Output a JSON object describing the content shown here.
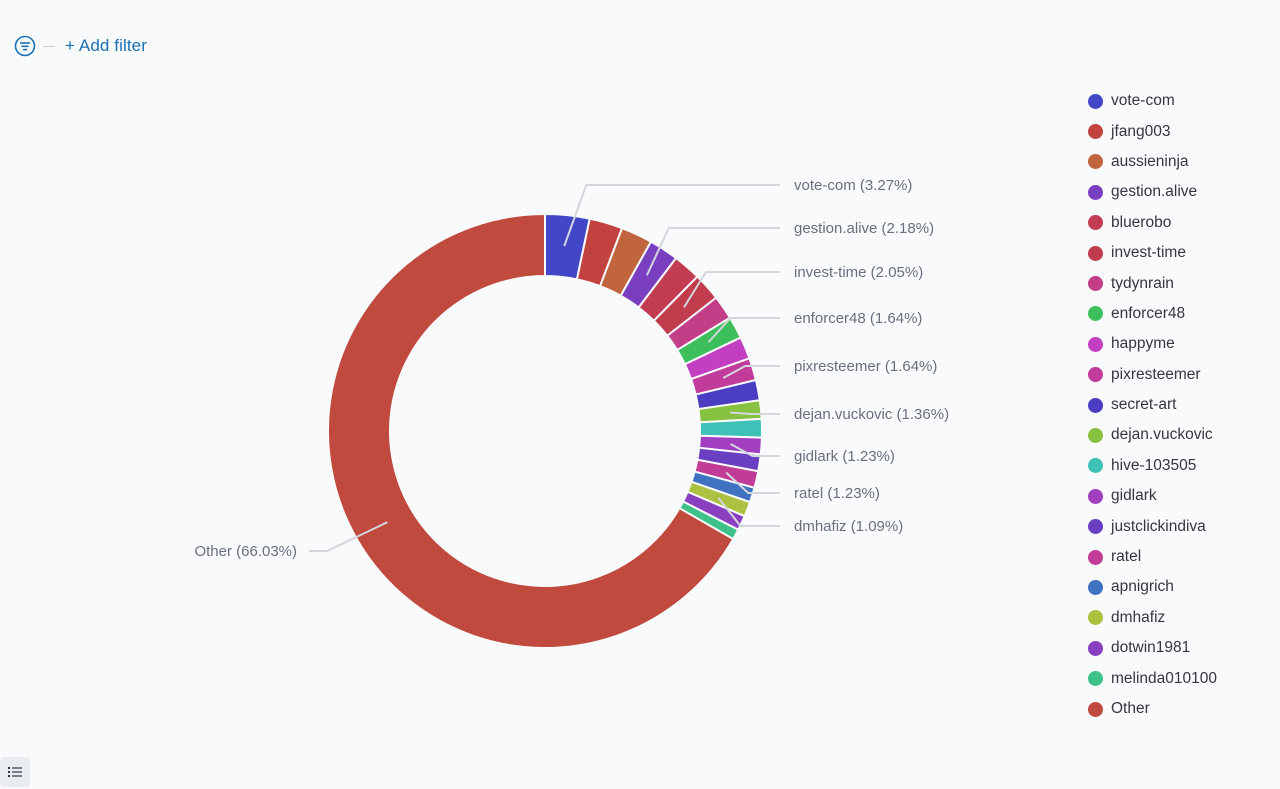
{
  "filter_bar": {
    "add_filter_label": "+ Add filter",
    "filter_icon": "filter-options-icon"
  },
  "legend_toggle_icon": "list-icon",
  "chart_data": {
    "type": "pie",
    "donut": true,
    "title": "",
    "slices": [
      {
        "label": "vote-com",
        "value": 3.27,
        "color": "#4147c7"
      },
      {
        "label": "jfang003",
        "value": 2.45,
        "color": "#c1423f"
      },
      {
        "label": "aussieninja",
        "value": 2.32,
        "color": "#c0653d"
      },
      {
        "label": "gestion.alive",
        "value": 2.18,
        "color": "#7a3fc1"
      },
      {
        "label": "bluerobo",
        "value": 2.05,
        "color": "#c23d52"
      },
      {
        "label": "invest-time",
        "value": 2.05,
        "color": "#c13c4c"
      },
      {
        "label": "tydynrain",
        "value": 1.77,
        "color": "#c23f87"
      },
      {
        "label": "enforcer48",
        "value": 1.64,
        "color": "#3dbf5c"
      },
      {
        "label": "happyme",
        "value": 1.64,
        "color": "#c23fc1"
      },
      {
        "label": "pixresteemer",
        "value": 1.64,
        "color": "#c13c9a"
      },
      {
        "label": "secret-art",
        "value": 1.5,
        "color": "#4a3dc1"
      },
      {
        "label": "dejan.vuckovic",
        "value": 1.36,
        "color": "#86c13f"
      },
      {
        "label": "hive-103505",
        "value": 1.36,
        "color": "#3fc1b8"
      },
      {
        "label": "gidlark",
        "value": 1.23,
        "color": "#a23fc1"
      },
      {
        "label": "justclickindiva",
        "value": 1.23,
        "color": "#6b3fc1"
      },
      {
        "label": "ratel",
        "value": 1.23,
        "color": "#c13c96"
      },
      {
        "label": "apnigrich",
        "value": 1.09,
        "color": "#3f72c1"
      },
      {
        "label": "dmhafiz",
        "value": 1.09,
        "color": "#acc13f"
      },
      {
        "label": "dotwin1981",
        "value": 1.09,
        "color": "#8a3fc1"
      },
      {
        "label": "melinda010100",
        "value": 0.77,
        "color": "#3fc18a"
      },
      {
        "label": "Other",
        "value": 66.03,
        "color": "#c14a3f"
      }
    ],
    "labels": [
      {
        "series": "vote-com",
        "text": "vote-com (3.27%)"
      },
      {
        "series": "gestion.alive",
        "text": "gestion.alive (2.18%)"
      },
      {
        "series": "invest-time",
        "text": "invest-time (2.05%)"
      },
      {
        "series": "enforcer48",
        "text": "enforcer48 (1.64%)"
      },
      {
        "series": "pixresteemer",
        "text": "pixresteemer (1.64%)"
      },
      {
        "series": "dejan.vuckovic",
        "text": "dejan.vuckovic (1.36%)"
      },
      {
        "series": "gidlark",
        "text": "gidlark (1.23%)"
      },
      {
        "series": "ratel",
        "text": "ratel (1.23%)"
      },
      {
        "series": "dmhafiz",
        "text": "dmhafiz (1.09%)"
      },
      {
        "series": "Other",
        "text": "Other (66.03%)"
      }
    ],
    "legend_position": "right"
  }
}
